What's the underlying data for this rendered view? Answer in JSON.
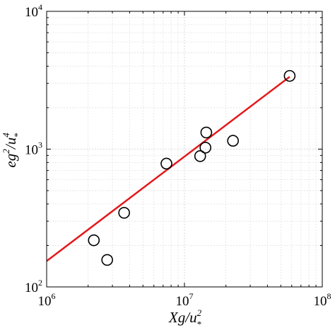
{
  "chart_data": {
    "type": "scatter",
    "xscale": "log",
    "yscale": "log",
    "xlim": [
      1000000,
      100000000
    ],
    "ylim": [
      100,
      10000
    ],
    "grid": true,
    "xlabel": {
      "base": "Xg/u",
      "sup": "2",
      "sub": "*"
    },
    "ylabel": {
      "base": "eg",
      "sup1": "2",
      "mid": "/u",
      "sup2": "4",
      "sub": "*"
    },
    "xticks": [
      {
        "value": 1000000,
        "base": "10",
        "exp": "6"
      },
      {
        "value": 10000000,
        "base": "10",
        "exp": "7"
      },
      {
        "value": 100000000,
        "base": "10",
        "exp": "8"
      }
    ],
    "yticks": [
      {
        "value": 100,
        "base": "10",
        "exp": "2"
      },
      {
        "value": 1000,
        "base": "10",
        "exp": "3"
      },
      {
        "value": 10000,
        "base": "10",
        "exp": "4"
      }
    ],
    "series": [
      {
        "marker": "open-circle",
        "color": "#000000",
        "x": [
          2200000,
          2750000,
          3650000,
          7400000,
          13000000,
          14200000,
          14400000,
          22500000,
          58000000
        ],
        "y": [
          218,
          157,
          345,
          785,
          890,
          1025,
          1320,
          1150,
          3400
        ]
      }
    ],
    "fit_line": {
      "color": "#e31a1c",
      "x": [
        1000000,
        58000000
      ],
      "y": [
        154,
        3350
      ]
    }
  }
}
